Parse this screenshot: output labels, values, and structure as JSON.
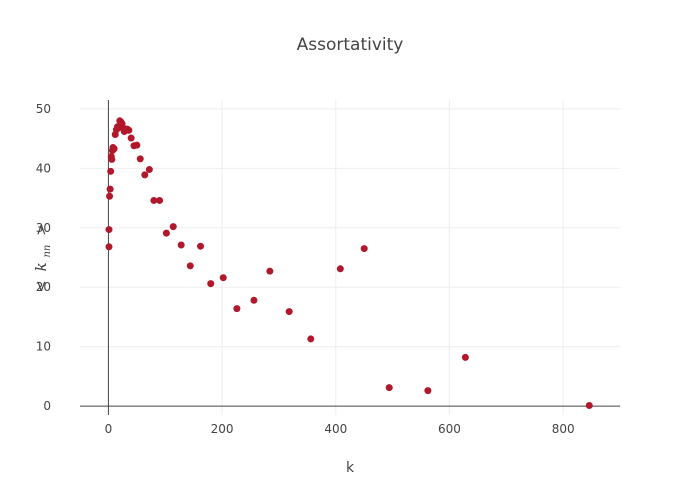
{
  "chart_data": {
    "type": "scatter",
    "title": "Assortativity",
    "xlabel": "k",
    "ylabel": "< k_nn >",
    "ylabel_display": {
      "lt": "<",
      "k": "k",
      "sub": "nn",
      "gt": ">"
    },
    "xlim": [
      -50,
      900
    ],
    "ylim": [
      -1.5,
      51.5
    ],
    "grid": true,
    "legend": "none",
    "x_ticks": [
      0,
      200,
      400,
      600,
      800
    ],
    "y_ticks": [
      0,
      10,
      20,
      30,
      40,
      50
    ],
    "x_tick_labels": [
      "0",
      "200",
      "400",
      "600",
      "800"
    ],
    "y_tick_labels": [
      "0",
      "10",
      "20",
      "30",
      "40",
      "50"
    ],
    "marker_color": "#b2182b",
    "series": [
      {
        "x": [
          1,
          1,
          2,
          3,
          4,
          5,
          6,
          7,
          8,
          9,
          10,
          12,
          14,
          16,
          18,
          20,
          22,
          24,
          26,
          28,
          30,
          33,
          36,
          40,
          45,
          50,
          56,
          64,
          72,
          80,
          90,
          102,
          114,
          128,
          144,
          162,
          180,
          202,
          226,
          256,
          284,
          318,
          356,
          408,
          450,
          494,
          562,
          628,
          846
        ],
        "y": [
          29.7,
          26.8,
          35.3,
          36.5,
          39.5,
          42.0,
          41.5,
          43.0,
          43.5,
          43.2,
          43.3,
          45.7,
          46.5,
          47.0,
          46.8,
          48.0,
          47.8,
          47.5,
          46.8,
          46.2,
          46.6,
          46.6,
          46.4,
          45.1,
          43.8,
          43.9,
          41.6,
          38.9,
          39.8,
          34.6,
          34.6,
          29.1,
          30.2,
          27.1,
          23.6,
          26.9,
          20.6,
          21.6,
          16.4,
          17.8,
          22.7,
          15.9,
          11.3,
          23.1,
          26.5,
          3.1,
          2.6,
          8.2,
          0.1
        ]
      }
    ]
  }
}
